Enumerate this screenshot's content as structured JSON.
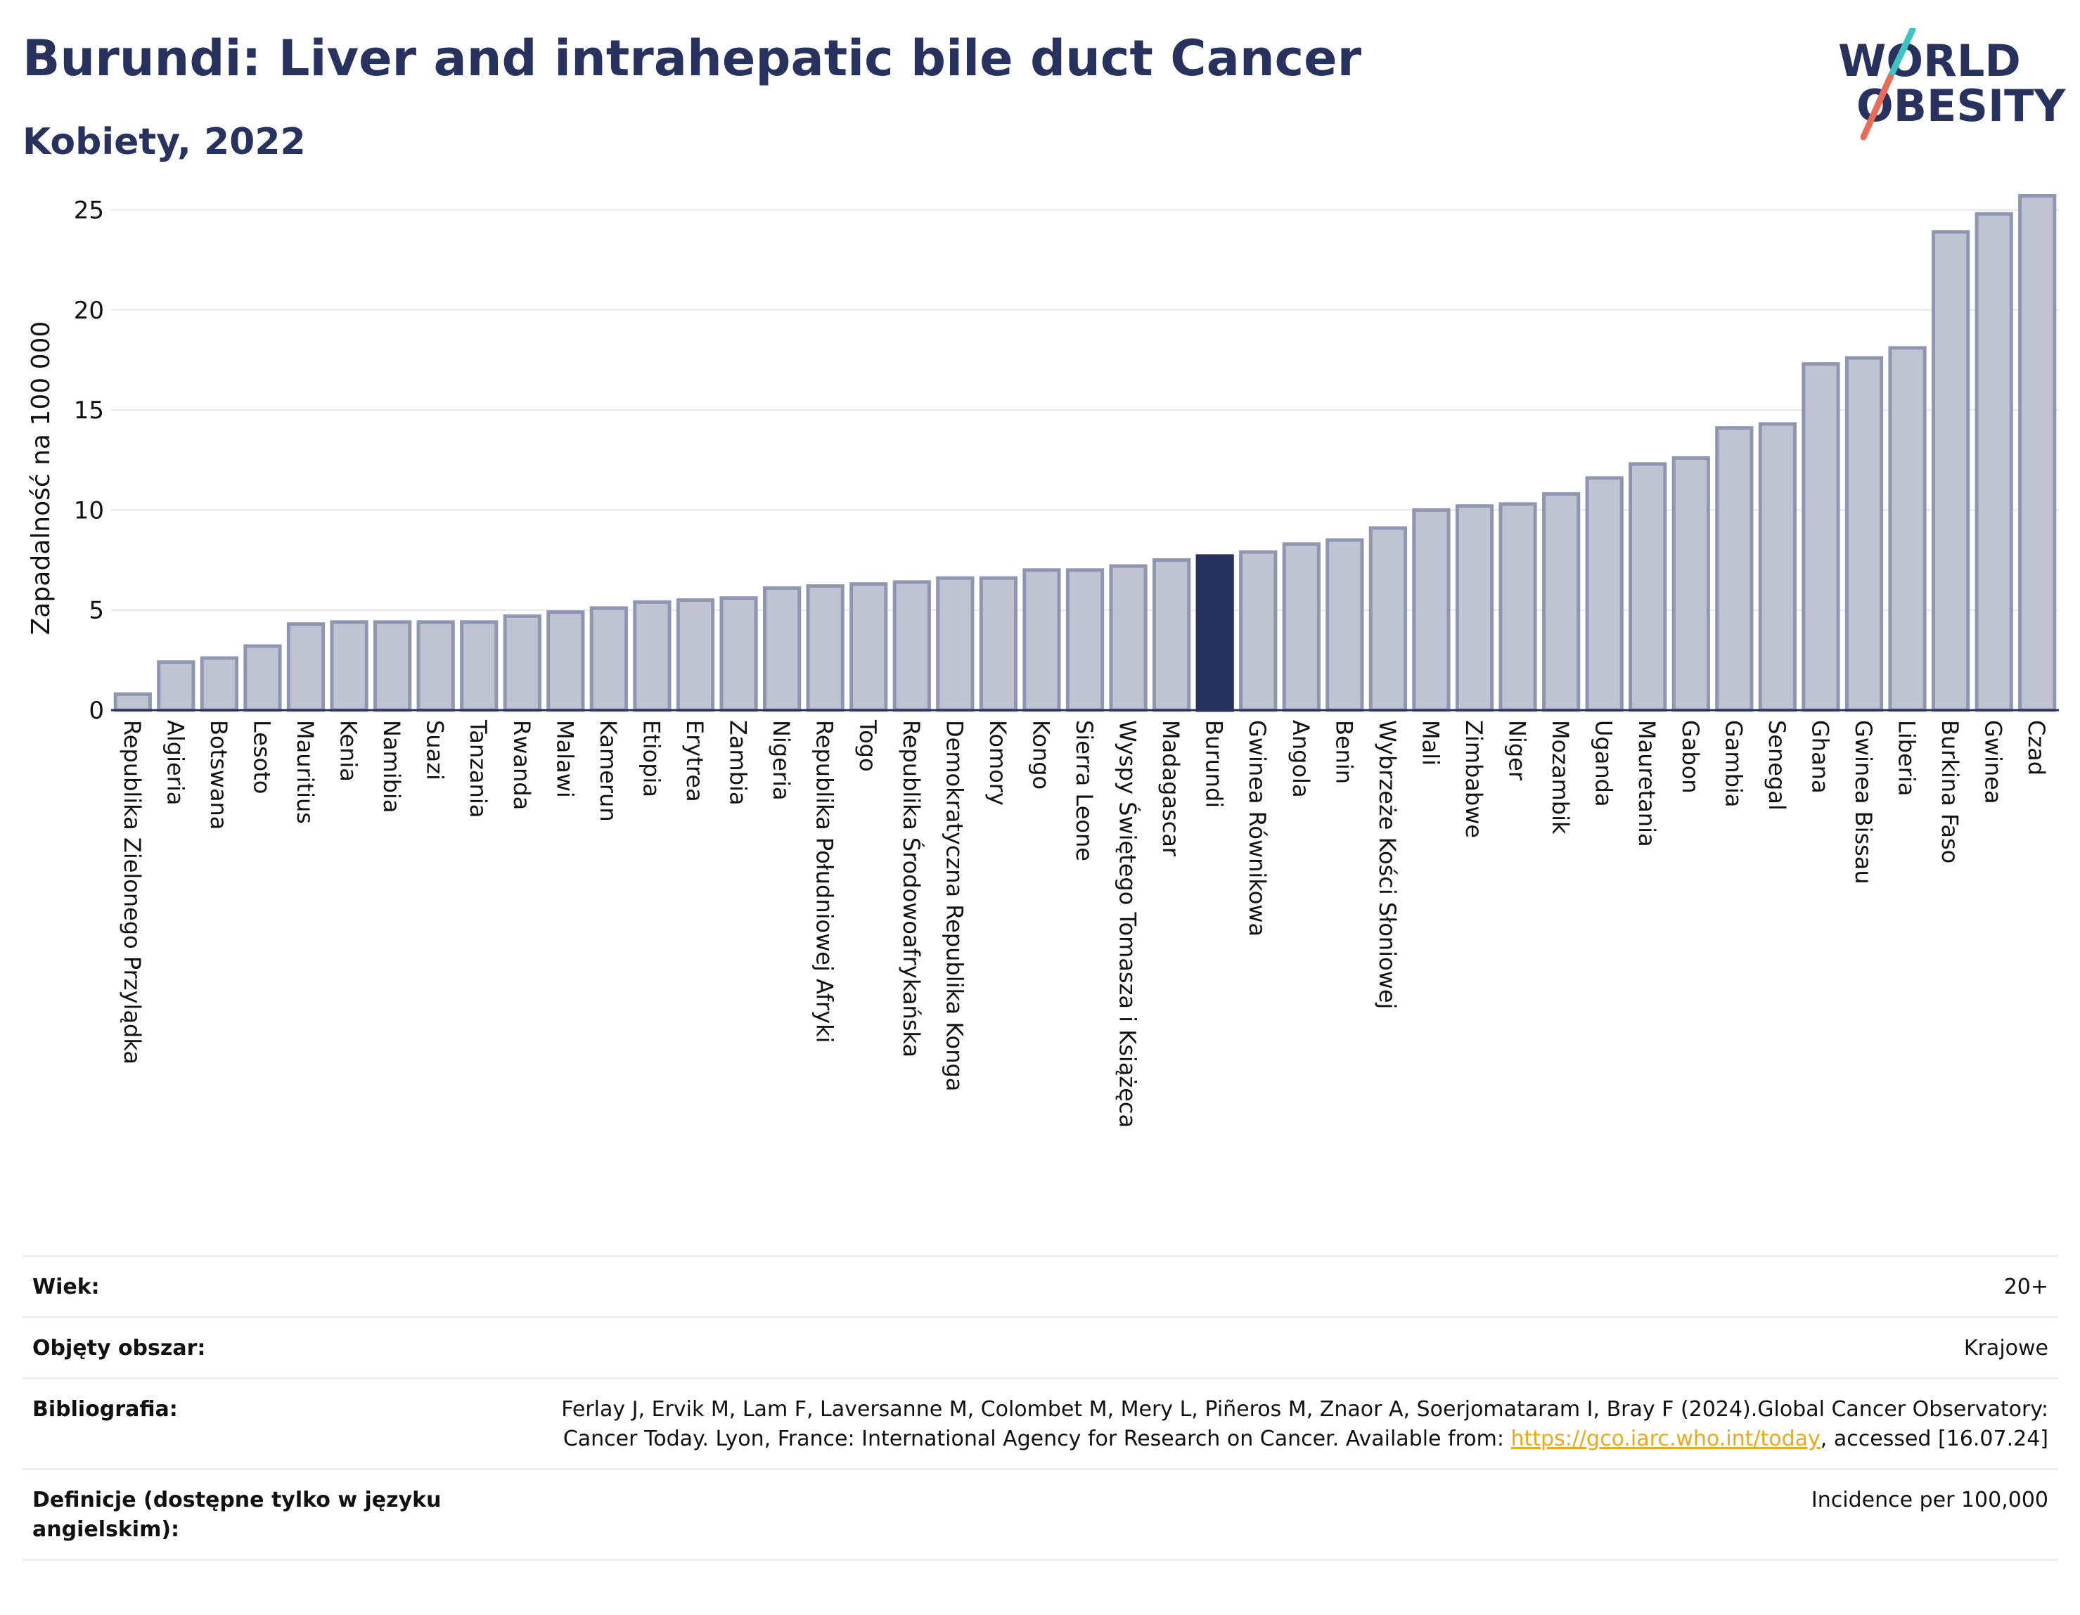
{
  "header": {
    "title": "Burundi: Liver and intrahepatic bile duct Cancer",
    "subtitle": "Kobiety, 2022"
  },
  "logo": {
    "line1": "WORLD",
    "line2": "OBESITY",
    "colors": {
      "text": "#27325e",
      "slash_top": "#3cc4c0",
      "slash_bottom": "#e96b5a"
    }
  },
  "chart_data": {
    "type": "bar",
    "ylabel": "Zapadalność na 100 000",
    "ylim": [
      0,
      26
    ],
    "yticks": [
      0,
      5,
      10,
      15,
      20,
      25
    ],
    "grid": true,
    "highlight": "Burundi",
    "colors": {
      "bar": "#c0c4d2",
      "bar_stroke": "#8f96b0",
      "highlight": "#27325e"
    },
    "categories": [
      "Republika Zielonego Przylądka",
      "Algieria",
      "Botswana",
      "Lesoto",
      "Mauritius",
      "Kenia",
      "Namibia",
      "Suazi",
      "Tanzania",
      "Rwanda",
      "Malawi",
      "Kamerun",
      "Etiopia",
      "Erytrea",
      "Zambia",
      "Nigeria",
      "Republika Południowej Afryki",
      "Togo",
      "Republika Środowoafrykańska",
      "Demokratyczna Republika Konga",
      "Komory",
      "Kongo",
      "Sierra Leone",
      "Wyspy Świętego Tomasza i Książęca",
      "Madagascar",
      "Burundi",
      "Gwinea Równikowa",
      "Angola",
      "Benin",
      "Wybrzeże Kości Słoniowej",
      "Mali",
      "Zimbabwe",
      "Niger",
      "Mozambik",
      "Uganda",
      "Mauretania",
      "Gabon",
      "Gambia",
      "Senegal",
      "Ghana",
      "Gwinea Bissau",
      "Liberia",
      "Burkina Faso",
      "Gwinea",
      "Czad"
    ],
    "values": [
      0.8,
      2.4,
      2.6,
      3.2,
      4.3,
      4.4,
      4.4,
      4.4,
      4.4,
      4.7,
      4.9,
      5.1,
      5.4,
      5.5,
      5.6,
      6.1,
      6.2,
      6.3,
      6.4,
      6.6,
      6.6,
      7.0,
      7.0,
      7.2,
      7.5,
      7.7,
      7.9,
      8.3,
      8.5,
      9.1,
      10.0,
      10.2,
      10.3,
      10.8,
      11.6,
      12.3,
      12.6,
      14.1,
      14.3,
      17.3,
      17.6,
      18.1,
      23.9,
      24.8,
      25.7
    ]
  },
  "meta": {
    "rows": [
      {
        "label": "Wiek:",
        "value": "20+"
      },
      {
        "label": "Objęty obszar:",
        "value": "Krajowe"
      },
      {
        "label": "Bibliografia:",
        "value_before": "Ferlay J, Ervik M, Lam F, Laversanne M, Colombet M, Mery L, Piñeros M, Znaor A, Soerjomataram I, Bray F (2024).Global Cancer Observatory: Cancer Today. Lyon, France: International Agency for Research on Cancer. Available from: ",
        "link": "https://gco.iarc.who.int/today",
        "value_after": ", accessed [16.07.24]"
      },
      {
        "label": "Definicje (dostępne tylko w języku angielskim):",
        "value": "Incidence per 100,000"
      }
    ]
  }
}
